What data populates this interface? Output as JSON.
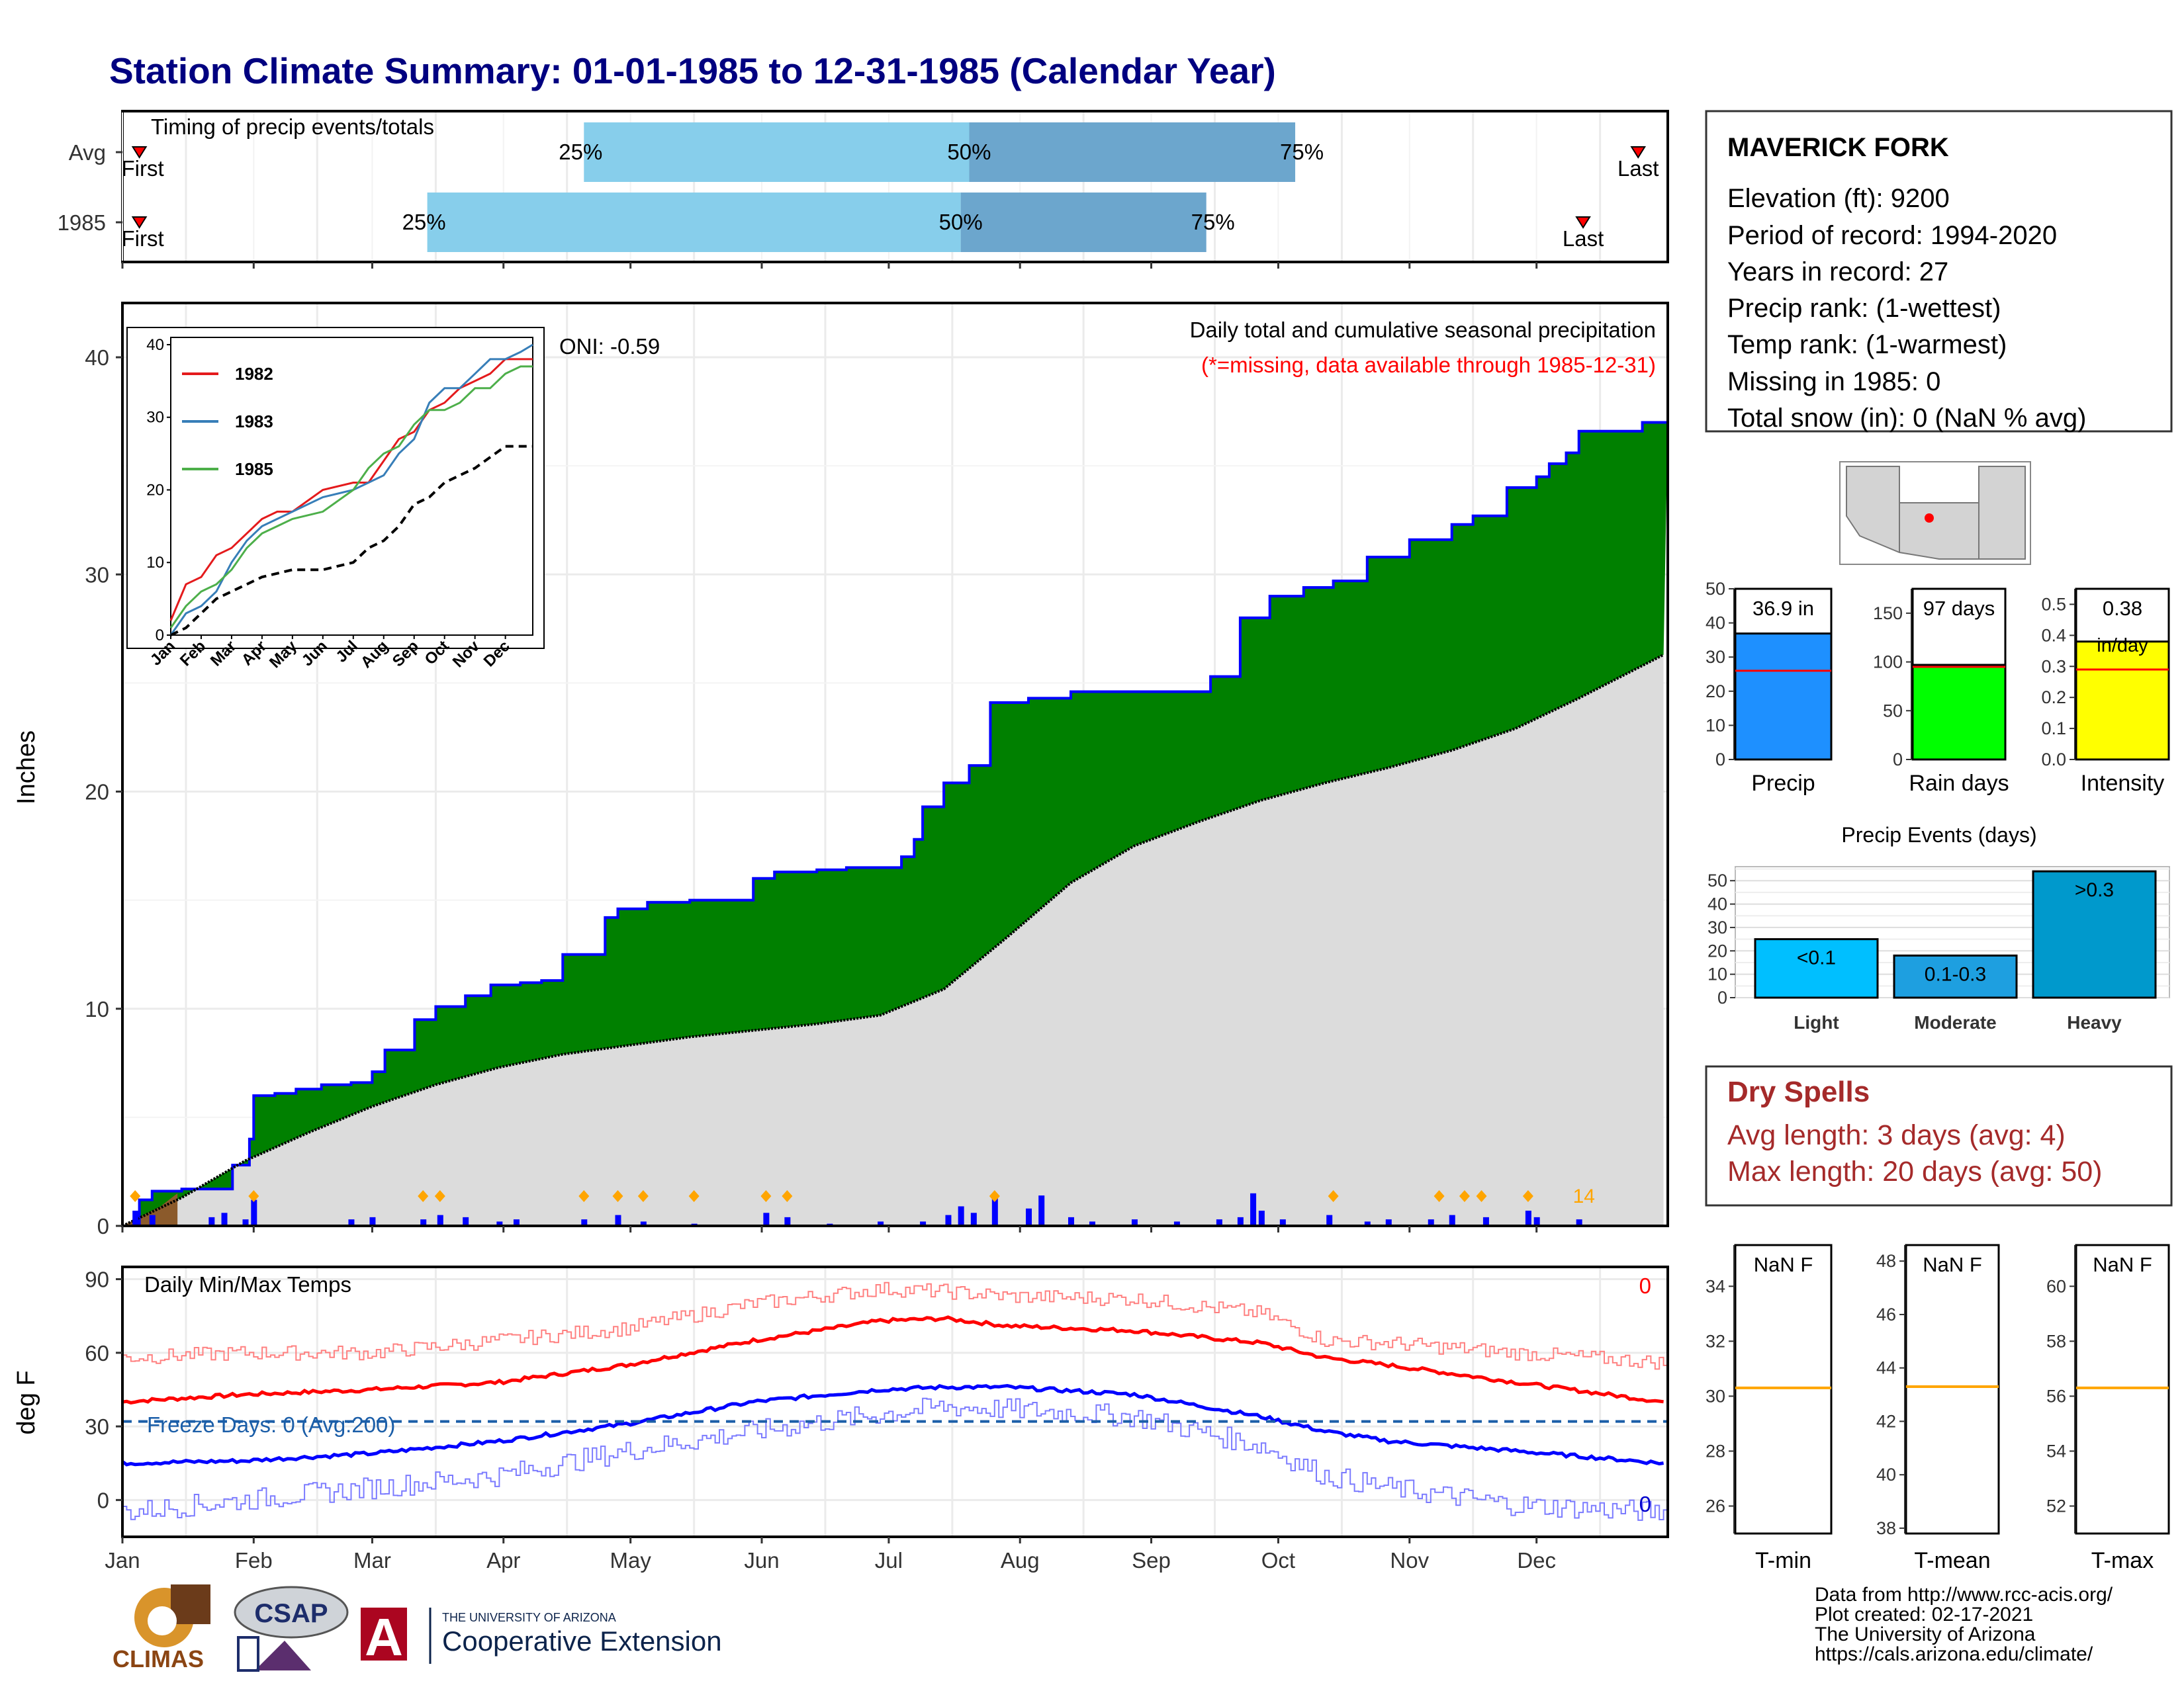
{
  "title": "Station Climate Summary: 01-01-1985 to 12-31-1985 (Calendar Year)",
  "months": [
    "Jan",
    "Feb",
    "Mar",
    "Apr",
    "May",
    "Jun",
    "Jul",
    "Aug",
    "Sep",
    "Oct",
    "Nov",
    "Dec"
  ],
  "timing": {
    "label": "Timing of precip events/totals",
    "rows": [
      {
        "name": "Avg",
        "first": "First",
        "last": "Last",
        "p25": "25%",
        "p50": "50%",
        "p75": "75%",
        "first_doy": 5,
        "p25_doy": 110,
        "p50_doy": 201,
        "p75_doy": 278,
        "last_doy": 359
      },
      {
        "name": "1985",
        "first": "First",
        "last": "Last",
        "p25": "25%",
        "p50": "50%",
        "p75": "75%",
        "first_doy": 5,
        "p25_doy": 73,
        "p50_doy": 199,
        "p75_doy": 257,
        "last_doy": 346
      }
    ]
  },
  "precip_panel": {
    "ylabel": "Inches",
    "yticks": [
      "0",
      "10",
      "20",
      "30",
      "40"
    ],
    "ylim": [
      0,
      40
    ],
    "oni": "ONI: -0.59",
    "note": "Daily total and cumulative seasonal precipitation",
    "missing_note": "(*=missing, data available through 1985-12-31)",
    "count_label": "14"
  },
  "inset": {
    "yticks": [
      "0",
      "10",
      "20",
      "30",
      "40"
    ],
    "legend": [
      {
        "name": "1982",
        "color": "#e41a1c"
      },
      {
        "name": "1983",
        "color": "#377eb8"
      },
      {
        "name": "1985",
        "color": "#4daf4a"
      }
    ]
  },
  "temp_panel": {
    "ylabel": "deg F",
    "yticks": [
      "0",
      "30",
      "60",
      "90"
    ],
    "label": "Daily Min/Max Temps",
    "freeze": "Freeze Days: 0 (Avg:200)",
    "max_count": "0",
    "min_count": "0"
  },
  "station": {
    "name": "MAVERICK FORK",
    "lines": [
      "Elevation (ft): 9200",
      "Period of record: 1994-2020",
      "Years in record: 27",
      "Precip rank:  (1-wettest)",
      "Temp rank:  (1-warmest)",
      "Missing in 1985: 0",
      "Total snow (in): 0 (NaN % avg)"
    ]
  },
  "bars": [
    {
      "name": "precip",
      "value_label": "36.9 in",
      "value": 36.9,
      "avg": 26,
      "max": 50,
      "color": "#1e90ff",
      "yticks": [
        "0",
        "10",
        "20",
        "30",
        "40",
        "50"
      ],
      "label": "Precip"
    },
    {
      "name": "rain-days",
      "value_label": "97 days",
      "value": 97,
      "avg": 95,
      "max": 175,
      "color": "#00ff00",
      "yticks": [
        "0",
        "50",
        "100",
        "150"
      ],
      "label": "Rain days"
    },
    {
      "name": "intensity",
      "value_label": "0.38",
      "value_sub": "in/day",
      "value": 0.38,
      "avg": 0.29,
      "max": 0.55,
      "color": "#ffff00",
      "yticks": [
        "0.0",
        "0.1",
        "0.2",
        "0.3",
        "0.4",
        "0.5"
      ],
      "label": "Intensity"
    }
  ],
  "events": {
    "title": "Precip Events (days)",
    "yticks": [
      "0",
      "10",
      "20",
      "30",
      "40",
      "50"
    ],
    "categories": [
      {
        "name": "Light",
        "bin": "<0.1",
        "value": 25,
        "color": "#00bfff"
      },
      {
        "name": "Moderate",
        "bin": "0.1-0.3",
        "value": 18,
        "color": "#1e9fe0"
      },
      {
        "name": "Heavy",
        "bin": ">0.3",
        "value": 54,
        "color": "#0099cc"
      }
    ]
  },
  "dry_spells": {
    "title": "Dry Spells",
    "avg": "Avg length: 3 days (avg: 4)",
    "max": "Max length: 20 days (avg: 50)"
  },
  "temp_boxes": [
    {
      "name": "tmin",
      "value": "NaN F",
      "label": "T-min",
      "yticks": [
        "26",
        "28",
        "30",
        "32",
        "34"
      ],
      "ymin": 25,
      "ymax": 35.5,
      "avg": 30.3
    },
    {
      "name": "tmean",
      "value": "NaN F",
      "label": "T-mean",
      "yticks": [
        "38",
        "40",
        "42",
        "44",
        "46",
        "48"
      ],
      "ymin": 37.8,
      "ymax": 48.6,
      "avg": 43.3
    },
    {
      "name": "tmax",
      "value": "NaN F",
      "label": "T-max",
      "yticks": [
        "52",
        "54",
        "56",
        "58",
        "60"
      ],
      "ymin": 51,
      "ymax": 61.5,
      "avg": 56.3
    }
  ],
  "logos": {
    "climas": "CLIMAS",
    "csap": "CSAP",
    "uofa_small": "THE UNIVERSITY OF ARIZONA",
    "coop": "Cooperative Extension",
    "uofa_letter": "A"
  },
  "footer": [
    "Data from http://www.rcc-acis.org/",
    "Plot created: 02-17-2021",
    "The University of Arizona",
    "https://cals.arizona.edu/climate/"
  ],
  "chart_data": [
    {
      "type": "area",
      "title": "Daily total and cumulative seasonal precipitation",
      "ylabel": "Inches",
      "ylim": [
        0,
        40
      ],
      "x_units": "day of year",
      "series": [
        {
          "name": "1985 cumulative",
          "x": [
            1,
            5,
            8,
            15,
            27,
            31,
            32,
            37,
            42,
            48,
            55,
            60,
            63,
            70,
            75,
            82,
            88,
            95,
            100,
            105,
            115,
            118,
            125,
            135,
            150,
            155,
            165,
            172,
            185,
            188,
            190,
            195,
            201,
            206,
            215,
            225,
            230,
            245,
            258,
            265,
            272,
            280,
            287,
            295,
            305,
            315,
            320,
            328,
            335,
            338,
            342,
            345,
            360,
            365
          ],
          "y": [
            0,
            1.2,
            1.6,
            1.7,
            2.8,
            4.0,
            6.0,
            6.1,
            6.3,
            6.5,
            6.6,
            7.1,
            8.1,
            9.5,
            10.1,
            10.6,
            11.1,
            11.2,
            11.3,
            12.5,
            14.2,
            14.6,
            14.9,
            15.0,
            16.0,
            16.3,
            16.4,
            16.5,
            17.0,
            17.8,
            19.3,
            20.4,
            21.2,
            24.1,
            24.3,
            24.6,
            24.6,
            24.6,
            25.3,
            28.0,
            29.0,
            29.4,
            29.7,
            30.8,
            31.6,
            32.3,
            32.7,
            34.0,
            34.5,
            35.1,
            35.6,
            36.6,
            37.0,
            37.0
          ]
        },
        {
          "name": "Average cumulative",
          "x": [
            1,
            15,
            30,
            45,
            60,
            75,
            90,
            105,
            120,
            135,
            150,
            165,
            180,
            195,
            210,
            225,
            240,
            255,
            270,
            285,
            300,
            315,
            330,
            345,
            365
          ],
          "y": [
            0,
            1.3,
            3.0,
            4.3,
            5.5,
            6.5,
            7.3,
            7.9,
            8.3,
            8.7,
            9.0,
            9.3,
            9.7,
            10.9,
            13.3,
            15.8,
            17.5,
            18.6,
            19.6,
            20.4,
            21.1,
            21.9,
            22.9,
            24.3,
            26.3
          ]
        },
        {
          "name": "Daily precip",
          "x": [
            4,
            8,
            22,
            25,
            30,
            32,
            55,
            60,
            72,
            76,
            82,
            90,
            94,
            110,
            118,
            124,
            136,
            153,
            158,
            168,
            180,
            190,
            196,
            199,
            202,
            207,
            215,
            218,
            225,
            230,
            240,
            250,
            260,
            265,
            268,
            270,
            275,
            286,
            295,
            300,
            310,
            315,
            323,
            333,
            335,
            345
          ],
          "y": [
            0.7,
            0.5,
            0.4,
            0.6,
            0.3,
            1.2,
            0.3,
            0.4,
            0.3,
            0.5,
            0.4,
            0.2,
            0.3,
            0.3,
            0.5,
            0.2,
            0.1,
            0.6,
            0.4,
            0.1,
            0.2,
            0.2,
            0.5,
            0.9,
            0.6,
            1.4,
            0.8,
            1.4,
            0.4,
            0.2,
            0.3,
            0.2,
            0.3,
            0.4,
            1.5,
            0.7,
            0.3,
            0.5,
            0.2,
            0.3,
            0.3,
            0.5,
            0.4,
            0.7,
            0.4,
            0.3
          ]
        }
      ]
    },
    {
      "type": "line",
      "xlabel": "",
      "ylabel": "",
      "ylim": [
        0,
        40
      ],
      "x_units": "month index (0 = Jan)",
      "series": [
        {
          "name": "1982",
          "x": [
            0,
            0.5,
            1,
            1.5,
            2,
            2.5,
            3,
            3.5,
            4,
            5,
            6,
            6.5,
            7,
            7.5,
            8,
            8.5,
            9,
            9.5,
            10,
            10.5,
            11,
            11.5,
            11.9
          ],
          "y": [
            2,
            7,
            8,
            11,
            12,
            14,
            16,
            17,
            17,
            20,
            21,
            21,
            24,
            27,
            28,
            31,
            32,
            34,
            35,
            36,
            38,
            38,
            38
          ]
        },
        {
          "name": "1983",
          "x": [
            0,
            0.5,
            1,
            1.5,
            2,
            2.5,
            3,
            3.5,
            4,
            5,
            6,
            6.5,
            7,
            7.5,
            8,
            8.5,
            9,
            9.5,
            10,
            10.5,
            11,
            11.5,
            11.9
          ],
          "y": [
            0,
            3,
            4,
            6,
            10,
            13,
            15,
            16,
            17,
            19,
            20,
            21,
            22,
            25,
            27,
            32,
            34,
            34,
            36,
            38,
            38,
            39,
            40
          ]
        },
        {
          "name": "1985",
          "x": [
            0,
            0.5,
            1,
            1.5,
            2,
            2.5,
            3,
            3.5,
            4,
            5,
            6,
            6.5,
            7,
            7.5,
            8,
            8.5,
            9,
            9.5,
            10,
            10.5,
            11,
            11.5,
            11.9
          ],
          "y": [
            1,
            4,
            6,
            7,
            9,
            12,
            14,
            15,
            16,
            17,
            20,
            23,
            25,
            26,
            29,
            31,
            31,
            32,
            34,
            34,
            36,
            37,
            37
          ]
        },
        {
          "name": "Average",
          "x": [
            0,
            0.5,
            1,
            1.5,
            2,
            3,
            4,
            5,
            6,
            6.5,
            7,
            7.5,
            8,
            8.5,
            9,
            9.5,
            10,
            11,
            11.9
          ],
          "y": [
            0,
            1,
            3,
            5,
            6,
            8,
            9,
            9,
            10,
            12,
            13,
            15,
            18,
            19,
            21,
            22,
            23,
            26,
            26
          ]
        }
      ]
    },
    {
      "type": "line",
      "title": "Daily Min/Max Temps",
      "ylabel": "deg F",
      "ylim": [
        -15,
        95
      ],
      "x_units": "day of year",
      "series": [
        {
          "name": "Avg max",
          "x": [
            1,
            30,
            60,
            90,
            120,
            150,
            180,
            195,
            210,
            240,
            270,
            285,
            300,
            330,
            365
          ],
          "y": [
            40,
            43,
            45,
            48,
            55,
            65,
            73,
            74,
            71,
            69,
            64,
            58,
            55,
            48,
            40
          ]
        },
        {
          "name": "Avg min",
          "x": [
            1,
            30,
            60,
            90,
            120,
            150,
            180,
            195,
            210,
            240,
            270,
            285,
            300,
            330,
            365
          ],
          "y": [
            15,
            16,
            19,
            24,
            31,
            40,
            45,
            46,
            46,
            43,
            34,
            28,
            24,
            20,
            15
          ]
        },
        {
          "name": "Max",
          "x": [
            1,
            30,
            60,
            90,
            120,
            150,
            180,
            195,
            210,
            240,
            270,
            285,
            300,
            330,
            365
          ],
          "y": [
            58,
            60,
            60,
            65,
            70,
            80,
            86,
            85,
            83,
            82,
            76,
            65,
            64,
            60,
            56
          ]
        },
        {
          "name": "Min",
          "x": [
            1,
            30,
            60,
            90,
            120,
            150,
            180,
            195,
            210,
            240,
            270,
            285,
            300,
            330,
            365
          ],
          "y": [
            -5,
            0,
            5,
            10,
            20,
            28,
            35,
            38,
            37,
            34,
            22,
            10,
            5,
            -2,
            -5
          ]
        },
        {
          "name": "Freeze line",
          "x": [
            1,
            365
          ],
          "y": [
            32,
            32
          ]
        }
      ]
    }
  ]
}
